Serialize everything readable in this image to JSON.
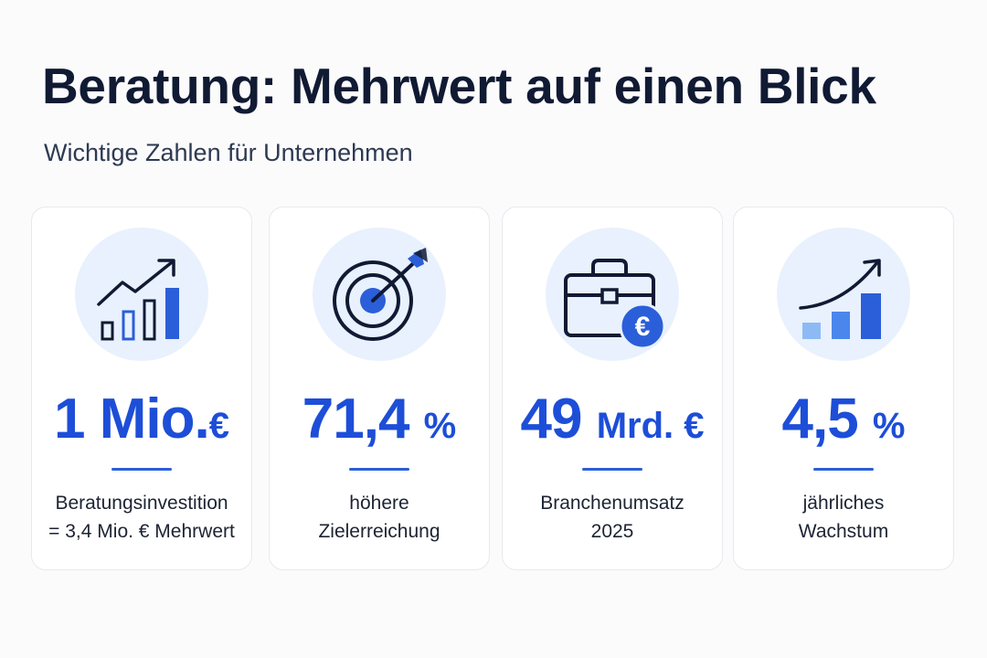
{
  "header": {
    "title": "Beratung: Mehrwert auf einen Blick",
    "subtitle": "Wichtige Zahlen für Unternehmen"
  },
  "colors": {
    "accent": "#1d4ed8",
    "text_dark": "#101a33",
    "icon_circle": "#e8f1fd"
  },
  "cards": [
    {
      "icon": "bar-chart-growth-icon",
      "value": "1 Mio.",
      "unit": "€",
      "desc_line1": "Beratungsinvestition",
      "desc_line2": "= 3,4 Mio. € Mehrwert"
    },
    {
      "icon": "target-icon",
      "value": "71,4",
      "unit": "%",
      "desc_line1": "höhere",
      "desc_line2": "Zielerreichung"
    },
    {
      "icon": "briefcase-euro-icon",
      "value": "49",
      "unit": "Mrd. €",
      "desc_line1": "Branchenumsatz",
      "desc_line2": "2025"
    },
    {
      "icon": "growth-curve-icon",
      "value": "4,5",
      "unit": "%",
      "desc_line1": "jährliches",
      "desc_line2": "Wachstum"
    }
  ]
}
